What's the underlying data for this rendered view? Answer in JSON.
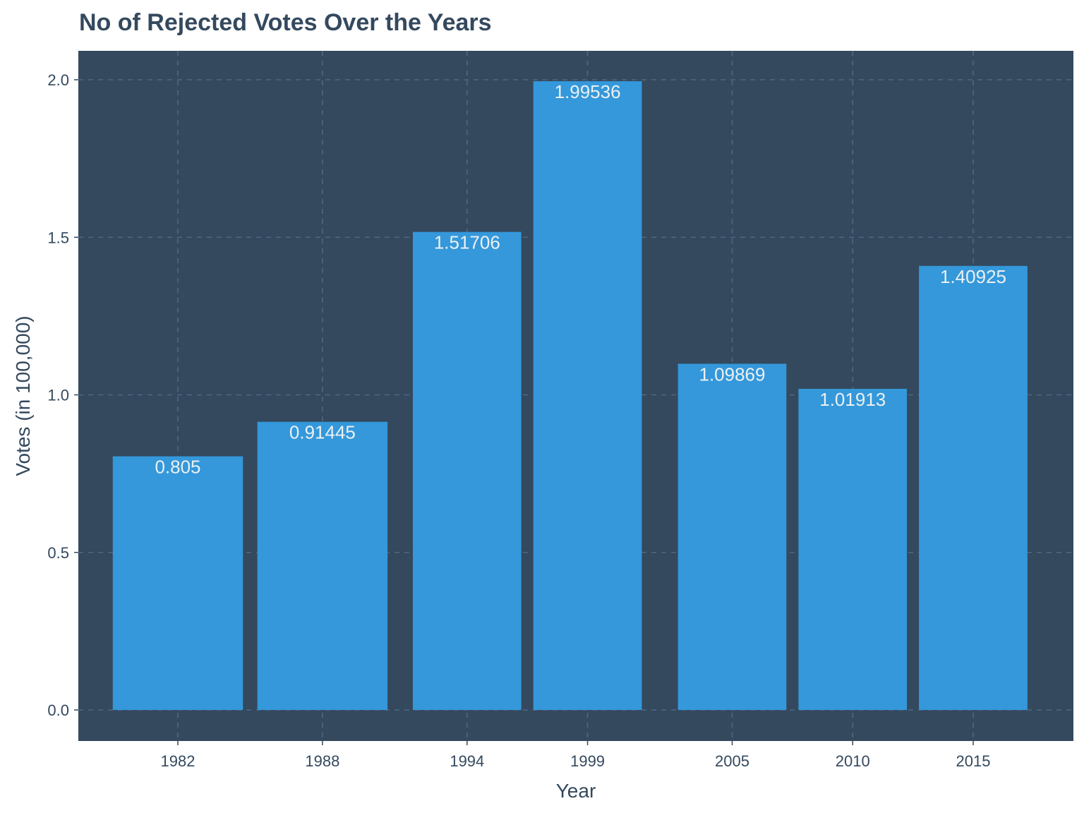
{
  "chart_data": {
    "type": "bar",
    "title": "No of Rejected Votes Over the Years",
    "xlabel": "Year",
    "ylabel": "Votes (in 100,000)",
    "categories": [
      "1982",
      "1988",
      "1994",
      "1999",
      "2005",
      "2010",
      "2015"
    ],
    "x_values": [
      1982,
      1988,
      1994,
      1999,
      2005,
      2010,
      2015
    ],
    "x_axis": "continuous year scale (bars positioned at year values)",
    "values": [
      0.805,
      0.91445,
      1.51706,
      1.99536,
      1.09869,
      1.01913,
      1.40925
    ],
    "data_labels": [
      "0.805",
      "0.91445",
      "1.51706",
      "1.99536",
      "1.09869",
      "1.01913",
      "1.40925"
    ],
    "yticks": [
      "0.0",
      "0.5",
      "1.0",
      "1.5",
      "2.0"
    ],
    "ylim": [
      -0.1,
      2.1
    ],
    "grid": true,
    "legend": "none",
    "colors": {
      "bar": "#3498db",
      "panel_background": "#34495e",
      "grid": "#4f6784",
      "data_label": "#ecf0f1",
      "text": "#34495e"
    }
  }
}
